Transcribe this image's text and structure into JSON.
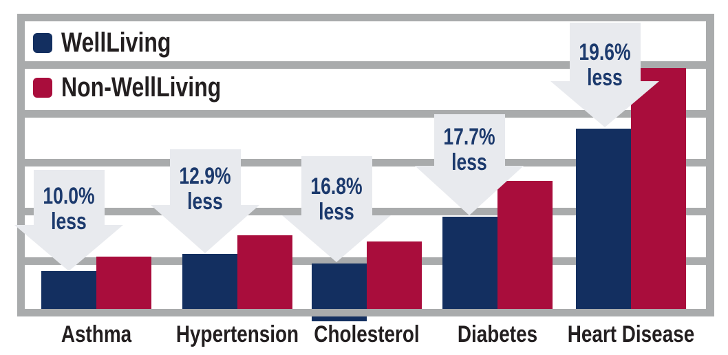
{
  "chart_data": {
    "type": "bar",
    "title": "",
    "categories": [
      "Asthma",
      "Hypertension",
      "Cholesterol",
      "Diabetes",
      "Heart Disease"
    ],
    "series": [
      {
        "name": "WellLiving",
        "color": "#132f60",
        "values": [
          0.76,
          1.11,
          0.92,
          1.86,
          3.64
        ]
      },
      {
        "name": "Non-WellLiving",
        "color": "#a90d3c",
        "values": [
          1.06,
          1.49,
          1.36,
          2.58,
          4.86
        ]
      }
    ],
    "value_unit": "gridline intervals (chart shows no numeric y-axis labels)",
    "ylim": [
      0,
      6
    ],
    "grid": "horizontal thick gray bands, 5 interior gridlines plus top and bottom frame",
    "legend_position": "top-left inside plot area",
    "annotations": [
      {
        "category": "Asthma",
        "line1": "10.0%",
        "line2": "less"
      },
      {
        "category": "Hypertension",
        "line1": "12.9%",
        "line2": "less"
      },
      {
        "category": "Cholesterol",
        "line1": "16.8%",
        "line2": "less"
      },
      {
        "category": "Diabetes",
        "line1": "17.7%",
        "line2": "less"
      },
      {
        "category": "Heart Disease",
        "line1": "19.6%",
        "line2": "less"
      }
    ]
  },
  "colors": {
    "wellliving_navy": "#132f60",
    "non_wellliving_crimson": "#a90d3c",
    "arrow_fill": "#e8eaee",
    "arrow_text": "#1c3a6d",
    "gridline_gray": "#a9abac",
    "label_text": "#231f20",
    "background": "#ffffff"
  }
}
